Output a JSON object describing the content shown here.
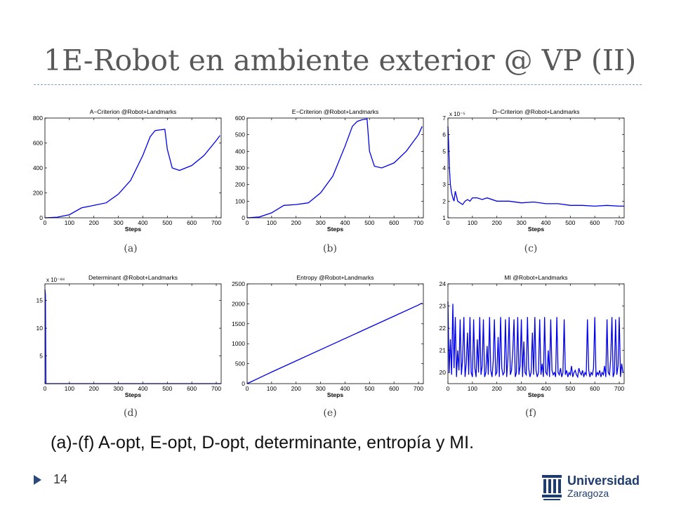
{
  "slide": {
    "title": "1E-Robot en ambiente exterior @ VP (II)",
    "caption": "(a)-(f) A-opt, E-opt, D-opt, determinante, entropía y MI.",
    "page_number": "14",
    "logo": {
      "name": "Universidad",
      "sub": "Zaragoza",
      "icon": "university-crest-icon"
    },
    "accent_color": "#2b4a7a",
    "line_color": "#0000ee"
  },
  "chart_data": [
    {
      "type": "line",
      "panel_label": "(a)",
      "title": "A−Criterion @Robot+Landmarks",
      "xlabel": "Steps",
      "ylabel": "",
      "exponent": "",
      "xlim": [
        0,
        720
      ],
      "ylim": [
        0,
        800
      ],
      "xticks": [
        0,
        100,
        200,
        300,
        400,
        500,
        600,
        700
      ],
      "yticks": [
        0,
        200,
        400,
        600,
        800
      ],
      "series": [
        {
          "x": [
            0,
            50,
            100,
            150,
            200,
            250,
            300,
            350,
            400,
            430,
            450,
            470,
            490,
            500,
            520,
            550,
            600,
            650,
            700,
            715
          ],
          "y": [
            0,
            5,
            25,
            80,
            100,
            120,
            190,
            300,
            500,
            650,
            700,
            705,
            710,
            550,
            400,
            380,
            420,
            500,
            620,
            660
          ]
        }
      ]
    },
    {
      "type": "line",
      "panel_label": "(b)",
      "title": "E−Criterion @Robot+Landmarks",
      "xlabel": "Steps",
      "ylabel": "",
      "exponent": "",
      "xlim": [
        0,
        720
      ],
      "ylim": [
        0,
        600
      ],
      "xticks": [
        0,
        100,
        200,
        300,
        400,
        500,
        600,
        700
      ],
      "yticks": [
        0,
        100,
        200,
        300,
        400,
        500,
        600
      ],
      "series": [
        {
          "x": [
            0,
            50,
            100,
            150,
            200,
            250,
            300,
            350,
            400,
            430,
            450,
            470,
            490,
            500,
            520,
            550,
            600,
            650,
            700,
            715
          ],
          "y": [
            0,
            5,
            30,
            75,
            80,
            90,
            150,
            250,
            430,
            550,
            580,
            590,
            595,
            400,
            310,
            300,
            330,
            400,
            500,
            550
          ]
        }
      ]
    },
    {
      "type": "line",
      "panel_label": "(c)",
      "title": "D−Criterion @Robot+Landmarks",
      "xlabel": "Steps",
      "ylabel": "",
      "exponent": "x 10⁻⁵",
      "xlim": [
        0,
        720
      ],
      "ylim": [
        1,
        7
      ],
      "xticks": [
        0,
        100,
        200,
        300,
        400,
        500,
        600,
        700
      ],
      "yticks": [
        1,
        2,
        3,
        4,
        5,
        6,
        7
      ],
      "series": [
        {
          "x": [
            0,
            3,
            6,
            10,
            15,
            20,
            25,
            30,
            35,
            40,
            50,
            60,
            70,
            80,
            90,
            100,
            120,
            140,
            160,
            200,
            250,
            300,
            350,
            400,
            450,
            500,
            550,
            600,
            650,
            700,
            720
          ],
          "y": [
            6.5,
            5.5,
            4.0,
            3.0,
            2.5,
            2.2,
            2.0,
            2.6,
            2.3,
            2.0,
            1.9,
            1.8,
            2.0,
            2.1,
            2.0,
            2.2,
            2.2,
            2.1,
            2.2,
            2.0,
            2.0,
            1.9,
            1.95,
            1.85,
            1.85,
            1.75,
            1.75,
            1.7,
            1.75,
            1.7,
            1.7
          ]
        }
      ]
    },
    {
      "type": "line",
      "panel_label": "(d)",
      "title": "Determinant @Robot+Landmarks",
      "xlabel": "Steps",
      "ylabel": "",
      "exponent": "x 10⁻⁸⁸",
      "xlim": [
        0,
        720
      ],
      "ylim": [
        0,
        18
      ],
      "xticks": [
        0,
        100,
        200,
        300,
        400,
        500,
        600,
        700
      ],
      "yticks": [
        5,
        10,
        15
      ],
      "series": [
        {
          "x": [
            0,
            2,
            4,
            6,
            10,
            720
          ],
          "y": [
            17,
            16,
            0,
            0,
            0,
            0
          ]
        }
      ]
    },
    {
      "type": "line",
      "panel_label": "(e)",
      "title": "Entropy @Robot+Landmarks",
      "xlabel": "Steps",
      "ylabel": "",
      "exponent": "",
      "xlim": [
        0,
        720
      ],
      "ylim": [
        0,
        2500
      ],
      "xticks": [
        0,
        100,
        200,
        300,
        400,
        500,
        600,
        700
      ],
      "yticks": [
        0,
        500,
        1000,
        1500,
        2000,
        2500
      ],
      "series": [
        {
          "x": [
            0,
            100,
            200,
            300,
            400,
            500,
            600,
            700,
            715
          ],
          "y": [
            0,
            290,
            570,
            850,
            1130,
            1410,
            1690,
            1970,
            2020
          ]
        }
      ]
    },
    {
      "type": "line",
      "panel_label": "(f)",
      "title": "MI @Robot+Landmarks",
      "xlabel": "Steps",
      "ylabel": "",
      "exponent": "",
      "xlim": [
        0,
        720
      ],
      "ylim": [
        19.5,
        24
      ],
      "xticks": [
        0,
        100,
        200,
        300,
        400,
        500,
        600,
        700
      ],
      "yticks": [
        20,
        21,
        22,
        23,
        24
      ],
      "series": [
        {
          "x": [
            0,
            5,
            10,
            15,
            20,
            25,
            30,
            35,
            40,
            45,
            50,
            55,
            60,
            65,
            70,
            75,
            80,
            85,
            90,
            95,
            100,
            105,
            110,
            115,
            120,
            125,
            130,
            135,
            140,
            145,
            150,
            155,
            160,
            165,
            170,
            175,
            180,
            185,
            190,
            195,
            200,
            205,
            210,
            215,
            220,
            225,
            230,
            235,
            240,
            245,
            250,
            255,
            260,
            265,
            270,
            275,
            280,
            285,
            290,
            295,
            300,
            305,
            310,
            315,
            320,
            325,
            330,
            335,
            340,
            345,
            350,
            355,
            360,
            365,
            370,
            375,
            380,
            385,
            390,
            395,
            400,
            405,
            410,
            415,
            420,
            425,
            430,
            435,
            440,
            445,
            450,
            455,
            460,
            465,
            470,
            475,
            480,
            485,
            490,
            495,
            500,
            505,
            510,
            515,
            520,
            525,
            530,
            535,
            540,
            545,
            550,
            555,
            560,
            565,
            570,
            575,
            580,
            585,
            590,
            595,
            600,
            605,
            610,
            615,
            620,
            625,
            630,
            635,
            640,
            645,
            650,
            655,
            660,
            665,
            670,
            675,
            680,
            685,
            690,
            695,
            700,
            705,
            710,
            715
          ],
          "y": [
            23.2,
            20.0,
            21.5,
            19.9,
            23.1,
            20.2,
            22.5,
            19.8,
            21.0,
            20.1,
            22.4,
            19.9,
            20.6,
            22.5,
            19.8,
            20.4,
            21.8,
            19.9,
            22.5,
            20.0,
            19.8,
            22.4,
            20.2,
            19.8,
            21.5,
            20.0,
            22.5,
            19.9,
            20.3,
            22.4,
            19.8,
            20.0,
            21.2,
            19.9,
            22.5,
            20.1,
            19.8,
            20.5,
            22.4,
            19.9,
            20.0,
            21.6,
            19.8,
            22.5,
            20.2,
            19.9,
            20.0,
            22.4,
            19.8,
            20.6,
            22.5,
            19.9,
            20.1,
            21.0,
            22.4,
            19.8,
            20.0,
            22.5,
            19.9,
            20.3,
            22.4,
            19.8,
            21.4,
            20.0,
            19.9,
            22.5,
            20.2,
            19.8,
            20.0,
            21.8,
            19.9,
            22.5,
            20.1,
            19.8,
            20.0,
            22.4,
            19.9,
            20.4,
            19.8,
            22.5,
            20.0,
            19.9,
            21.0,
            19.8,
            22.4,
            20.1,
            19.9,
            20.0,
            19.8,
            22.5,
            20.0,
            19.9,
            20.2,
            19.8,
            20.0,
            22.4,
            19.9,
            20.1,
            19.8,
            20.0,
            19.9,
            20.3,
            19.8,
            20.0,
            20.1,
            19.9,
            19.8,
            20.2,
            20.0,
            19.9,
            20.1,
            19.8,
            20.0,
            19.9,
            22.4,
            20.1,
            19.8,
            20.0,
            19.9,
            20.2,
            22.5,
            19.8,
            20.0,
            19.9,
            20.1,
            19.8,
            20.0,
            19.9,
            20.3,
            19.8,
            22.4,
            20.0,
            19.9,
            20.6,
            22.5,
            19.8,
            20.0,
            22.4,
            19.9,
            20.3,
            22.5,
            19.8,
            20.4,
            20.0
          ]
        }
      ]
    }
  ]
}
